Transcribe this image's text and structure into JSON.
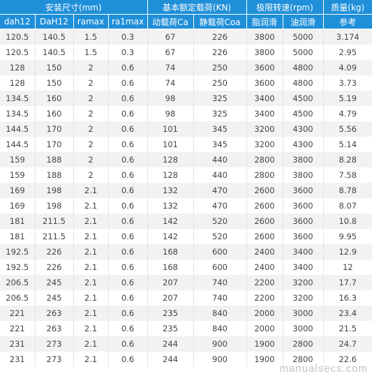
{
  "groups": {
    "install": "安装尺寸(mm)",
    "load": "基本额定载荷(KN)",
    "speed": "极限转速(rpm)",
    "mass": "质量(kg)"
  },
  "columns": [
    "dah12",
    "DaH12",
    "ramax",
    "ra1max",
    "动载荷Ca",
    "静载荷Coa",
    "脂润滑",
    "油润滑",
    "参考"
  ],
  "rows": [
    [
      "120.5",
      "140.5",
      "1.5",
      "0.3",
      "67",
      "226",
      "3800",
      "5000",
      "3.174"
    ],
    [
      "120.5",
      "140.5",
      "1.5",
      "0.3",
      "67",
      "226",
      "3800",
      "5000",
      "2.95"
    ],
    [
      "128",
      "150",
      "2",
      "0.6",
      "74",
      "250",
      "3600",
      "4800",
      "4.09"
    ],
    [
      "128",
      "150",
      "2",
      "0.6",
      "74",
      "250",
      "3600",
      "4800",
      "3.73"
    ],
    [
      "134.5",
      "160",
      "2",
      "0.6",
      "98",
      "325",
      "3400",
      "4500",
      "5.19"
    ],
    [
      "134.5",
      "160",
      "2",
      "0.6",
      "98",
      "325",
      "3400",
      "4500",
      "4.79"
    ],
    [
      "144.5",
      "170",
      "2",
      "0.6",
      "101",
      "345",
      "3200",
      "4300",
      "5.56"
    ],
    [
      "144.5",
      "170",
      "2",
      "0.6",
      "101",
      "345",
      "3200",
      "4300",
      "5.14"
    ],
    [
      "159",
      "188",
      "2",
      "0.6",
      "128",
      "440",
      "2800",
      "3800",
      "8.28"
    ],
    [
      "159",
      "188",
      "2",
      "0.6",
      "128",
      "440",
      "2800",
      "3800",
      "7.58"
    ],
    [
      "169",
      "198",
      "2.1",
      "0.6",
      "132",
      "470",
      "2600",
      "3600",
      "8.78"
    ],
    [
      "169",
      "198",
      "2.1",
      "0.6",
      "132",
      "470",
      "2600",
      "3600",
      "8.07"
    ],
    [
      "181",
      "211.5",
      "2.1",
      "0.6",
      "142",
      "520",
      "2600",
      "3600",
      "10.8"
    ],
    [
      "181",
      "211.5",
      "2.1",
      "0.6",
      "142",
      "520",
      "2600",
      "3600",
      "9.95"
    ],
    [
      "192.5",
      "226",
      "2.1",
      "0.6",
      "168",
      "600",
      "2400",
      "3400",
      "12.9"
    ],
    [
      "192.5",
      "226",
      "2.1",
      "0.6",
      "168",
      "600",
      "2400",
      "3400",
      "12"
    ],
    [
      "206.5",
      "245",
      "2.1",
      "0.6",
      "207",
      "740",
      "2200",
      "3200",
      "17.7"
    ],
    [
      "206.5",
      "245",
      "2.1",
      "0.6",
      "207",
      "740",
      "2200",
      "3200",
      "16.3"
    ],
    [
      "221",
      "263",
      "2.1",
      "0.6",
      "235",
      "840",
      "2000",
      "3000",
      "23.4"
    ],
    [
      "221",
      "263",
      "2.1",
      "0.6",
      "235",
      "840",
      "2000",
      "3000",
      "21.5"
    ],
    [
      "231",
      "273",
      "2.1",
      "0.6",
      "244",
      "900",
      "1900",
      "2800",
      "24.7"
    ],
    [
      "231",
      "273",
      "2.1",
      "0.6",
      "244",
      "900",
      "1900",
      "2800",
      "22.6"
    ]
  ],
  "watermark": "manualsecs.com",
  "colors": {
    "header_bg": "#1f8fd9",
    "header_text": "#ffffff",
    "stripe": "#f2f2f2",
    "cell_text": "#444444"
  }
}
